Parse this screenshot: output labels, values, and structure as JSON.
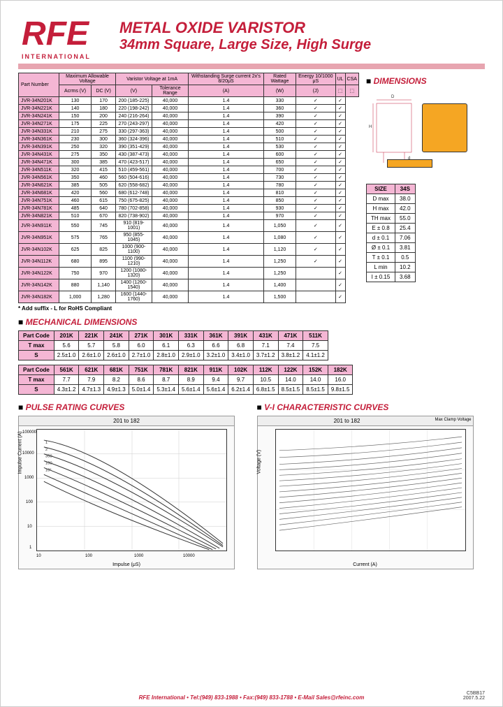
{
  "header": {
    "logo_text": "RFE",
    "logo_subtitle": "INTERNATIONAL",
    "title1": "METAL OXIDE VARISTOR",
    "title2": "34mm Square, Large Size, High Surge"
  },
  "sections": {
    "dimensions": "DIMENSIONS",
    "mechanical": "MECHANICAL DIMENSIONS",
    "pulse": "PULSE RATING CURVES",
    "vi": "V-I CHARACTERISTIC CURVES"
  },
  "main_table": {
    "headers": {
      "part": "Part Number",
      "maxvolt": "Maximum Allowable Voltage",
      "varistor": "Varistor Voltage at 1mA",
      "surge": "Withstanding Surge current 2x's 8/20μS",
      "watt": "Rated Wattage",
      "energy": "Energy 10/1000 μS",
      "ul": "UL",
      "csa": "CSA",
      "acrms": "Acrms (V)",
      "dc": "DC (V)",
      "v": "(V)",
      "tol": "Tolerance Range",
      "a": "(A)",
      "w": "(W)",
      "j": "(J)"
    },
    "rows": [
      [
        "JVR-34N201K",
        "130",
        "170",
        "200 (185-225)",
        "40,000",
        "1.4",
        "330",
        "✓",
        "✓"
      ],
      [
        "JVR-34N221K",
        "140",
        "180",
        "220 (198-242)",
        "40,000",
        "1.4",
        "360",
        "✓",
        "✓"
      ],
      [
        "JVR-34N241K",
        "150",
        "200",
        "240 (216-264)",
        "40,000",
        "1.4",
        "390",
        "✓",
        "✓"
      ],
      [
        "JVR-34N271K",
        "175",
        "225",
        "270 (243-297)",
        "40,000",
        "1.4",
        "420",
        "✓",
        "✓"
      ],
      [
        "JVR-34N331K",
        "210",
        "275",
        "330 (297-363)",
        "40,000",
        "1.4",
        "500",
        "✓",
        "✓"
      ],
      [
        "JVR-34N361K",
        "230",
        "300",
        "360 (324-396)",
        "40,000",
        "1.4",
        "510",
        "✓",
        "✓"
      ],
      [
        "JVR-34N391K",
        "250",
        "320",
        "390 (351-429)",
        "40,000",
        "1.4",
        "530",
        "✓",
        "✓"
      ],
      [
        "JVR-34N431K",
        "275",
        "350",
        "430 (387-473)",
        "40,000",
        "1.4",
        "600",
        "✓",
        "✓"
      ],
      [
        "JVR-34N471K",
        "300",
        "385",
        "470 (423-517)",
        "40,000",
        "1.4",
        "650",
        "✓",
        "✓"
      ],
      [
        "JVR-34N511K",
        "320",
        "415",
        "510 (459-561)",
        "40,000",
        "1.4",
        "700",
        "✓",
        "✓"
      ],
      [
        "JVR-34N561K",
        "350",
        "460",
        "560 (504-616)",
        "40,000",
        "1.4",
        "730",
        "✓",
        "✓"
      ],
      [
        "JVR-34N621K",
        "385",
        "505",
        "620 (558-682)",
        "40,000",
        "1.4",
        "780",
        "✓",
        "✓"
      ],
      [
        "JVR-34N681K",
        "420",
        "560",
        "680 (612-748)",
        "40,000",
        "1.4",
        "810",
        "✓",
        "✓"
      ],
      [
        "JVR-34N751K",
        "460",
        "615",
        "750 (675-825)",
        "40,000",
        "1.4",
        "850",
        "✓",
        "✓"
      ],
      [
        "JVR-34N781K",
        "485",
        "640",
        "780 (702-858)",
        "40,000",
        "1.4",
        "930",
        "✓",
        "✓"
      ],
      [
        "JVR-34N821K",
        "510",
        "670",
        "820 (738-902)",
        "40,000",
        "1.4",
        "970",
        "✓",
        "✓"
      ],
      [
        "JVR-34N911K",
        "550",
        "745",
        "910 (819-1001)",
        "40,000",
        "1.4",
        "1,050",
        "✓",
        "✓"
      ],
      [
        "JVR-34N951K",
        "575",
        "765",
        "950 (855-1045)",
        "40,000",
        "1.4",
        "1,080",
        "✓",
        "✓"
      ],
      [
        "JVR-34N102K",
        "625",
        "825",
        "1000 (900-1100)",
        "40,000",
        "1.4",
        "1,120",
        "✓",
        "✓"
      ],
      [
        "JVR-34N112K",
        "680",
        "895",
        "1100 (990-1210)",
        "40,000",
        "1.4",
        "1,250",
        "✓",
        "✓"
      ],
      [
        "JVR-34N122K",
        "750",
        "970",
        "1200 (1080-1320)",
        "40,000",
        "1.4",
        "1,250",
        "",
        "✓"
      ],
      [
        "JVR-34N142K",
        "880",
        "1,140",
        "1400 (1260-1540)",
        "40,000",
        "1.4",
        "1,400",
        "",
        "✓"
      ],
      [
        "JVR-34N182K",
        "1,000",
        "1,280",
        "1600 (1440-1760)",
        "40,000",
        "1.4",
        "1,500",
        "",
        "✓"
      ]
    ]
  },
  "footnote": "* Add suffix - L for RoHS Compliant",
  "dim_table": {
    "header": [
      "SIZE",
      "34S"
    ],
    "rows": [
      [
        "D max",
        "38.0"
      ],
      [
        "H max",
        "42.0"
      ],
      [
        "TH max",
        "55.0"
      ],
      [
        "E ± 0.8",
        "25.4"
      ],
      [
        "d ± 0.1",
        "7.06"
      ],
      [
        "Ø ± 0.1",
        "3.81"
      ],
      [
        "T ± 0.1",
        "0.5"
      ],
      [
        "L min",
        "10.2"
      ],
      [
        "I ± 0.15",
        "3.68"
      ]
    ]
  },
  "mech_table1": {
    "headers": [
      "Part Code",
      "201K",
      "221K",
      "241K",
      "271K",
      "301K",
      "331K",
      "361K",
      "391K",
      "431K",
      "471K",
      "511K"
    ],
    "tmax": [
      "T max",
      "5.6",
      "5.7",
      "5.8",
      "6.0",
      "6.1",
      "6.3",
      "6.6",
      "6.8",
      "7.1",
      "7.4",
      "7.5"
    ],
    "s": [
      "S",
      "2.5±1.0",
      "2.6±1.0",
      "2.6±1.0",
      "2.7±1.0",
      "2.8±1.0",
      "2.9±1.0",
      "3.2±1.0",
      "3.4±1.0",
      "3.7±1.2",
      "3.8±1.2",
      "4.1±1.2"
    ]
  },
  "mech_table2": {
    "headers": [
      "Part Code",
      "561K",
      "621K",
      "681K",
      "751K",
      "781K",
      "821K",
      "911K",
      "102K",
      "112K",
      "122K",
      "152K",
      "182K"
    ],
    "tmax": [
      "T max",
      "7.7",
      "7.9",
      "8.2",
      "8.6",
      "8.7",
      "8.9",
      "9.4",
      "9.7",
      "10.5",
      "14.0",
      "14.0",
      "16.0"
    ],
    "s": [
      "S",
      "4.3±1.2",
      "4.7±1.3",
      "4.9±1.3",
      "5.0±1.4",
      "5.3±1.4",
      "5.6±1.4",
      "5.6±1.4",
      "6.2±1.4",
      "6.8±1.5",
      "8.5±1.5",
      "8.5±1.5",
      "9.8±1.5"
    ]
  },
  "charts": {
    "pulse_title": "201 to 182",
    "pulse_ylabel": "Impulse Current (A)",
    "pulse_xlabel": "Impulse (μS)",
    "pulse_yticks": [
      "100000",
      "10000",
      "1000",
      "100",
      "10",
      "1"
    ],
    "pulse_xticks": [
      "10",
      "100",
      "1000",
      "10000"
    ],
    "vi_title": "201 to 182",
    "vi_ylabel": "Voltage (V)",
    "vi_xlabel": "Current (A)",
    "vi_subtitle": "Max Clamp Voltage"
  },
  "footer": {
    "text": "RFE International • Tel:(949) 833-1988 • Fax:(949) 833-1788 • E-Mail Sales@rfeinc.com",
    "code": "C5BB17",
    "date": "2007.5.22"
  },
  "colors": {
    "brand": "#c41e3a",
    "pink": "#f4b6d4",
    "chip": "#f5a623"
  }
}
